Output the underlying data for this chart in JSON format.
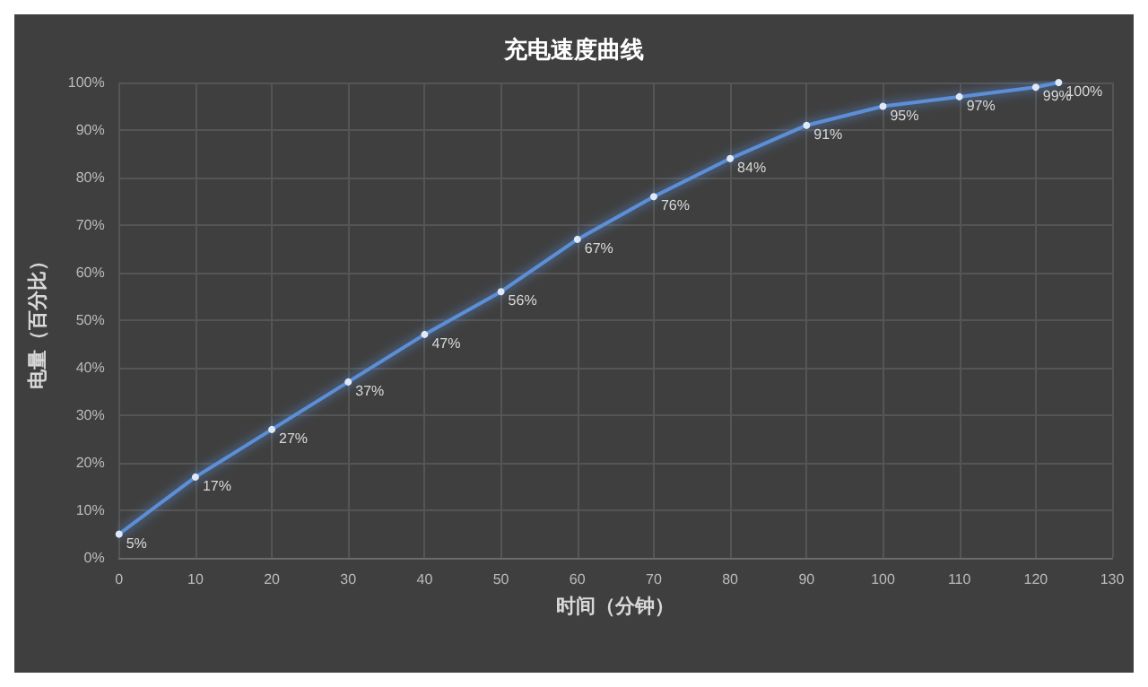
{
  "chart_data": {
    "type": "line",
    "title": "充电速度曲线",
    "xlabel": "时间（分钟）",
    "ylabel": "电量（百分比）",
    "x": [
      0,
      10,
      20,
      30,
      40,
      50,
      60,
      70,
      80,
      90,
      100,
      110,
      120,
      123
    ],
    "series": [
      {
        "color": "#5b8fd8",
        "values": [
          5,
          17,
          27,
          37,
          47,
          56,
          67,
          76,
          84,
          91,
          95,
          97,
          99,
          100
        ],
        "value_labels": [
          "5%",
          "17%",
          "27%",
          "37%",
          "47%",
          "56%",
          "67%",
          "76%",
          "84%",
          "91%",
          "95%",
          "97%",
          "99%",
          "100%"
        ]
      }
    ],
    "xlim": [
      0,
      130
    ],
    "xticks": [
      0,
      10,
      20,
      30,
      40,
      50,
      60,
      70,
      80,
      90,
      100,
      110,
      120,
      130
    ],
    "ylim": [
      0,
      100
    ],
    "yticks": [
      {
        "value": 0,
        "label": "0%"
      },
      {
        "value": 10,
        "label": "10%"
      },
      {
        "value": 20,
        "label": "20%"
      },
      {
        "value": 30,
        "label": "30%"
      },
      {
        "value": 40,
        "label": "40%"
      },
      {
        "value": 50,
        "label": "50%"
      },
      {
        "value": 60,
        "label": "60%"
      },
      {
        "value": 70,
        "label": "70%"
      },
      {
        "value": 80,
        "label": "80%"
      },
      {
        "value": 90,
        "label": "90%"
      },
      {
        "value": 100,
        "label": "100%"
      }
    ],
    "grid": true,
    "marker": "circle",
    "line_style": "solid"
  }
}
